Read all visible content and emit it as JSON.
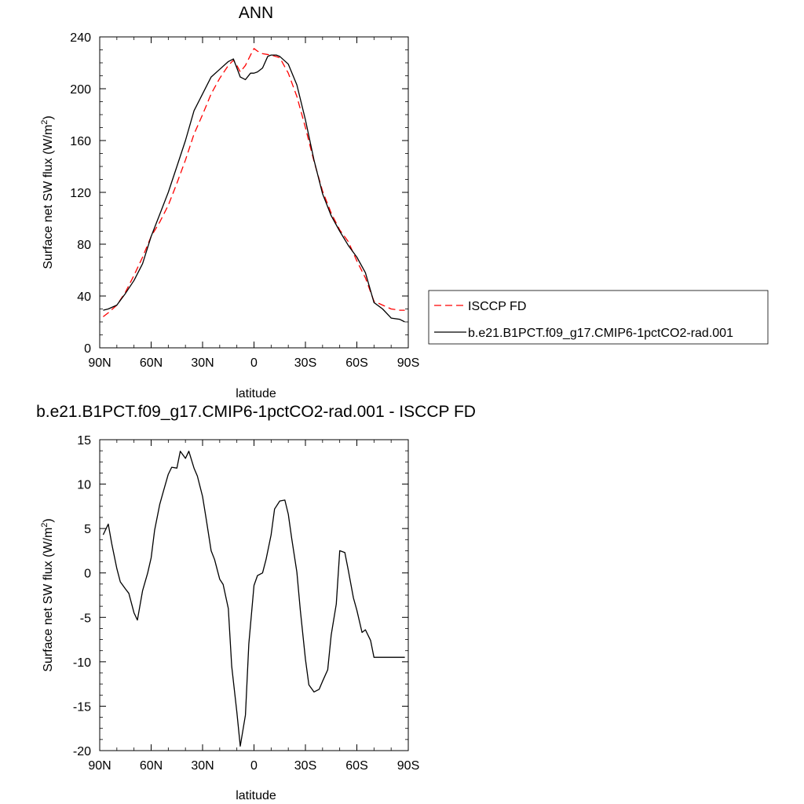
{
  "chart_data": [
    {
      "type": "line",
      "title": "ANN",
      "xlabel": "latitude",
      "ylabel_prefix": "Surface net SW flux (W/m",
      "ylabel_sup": "2",
      "ylabel_suffix": ")",
      "xlim": [
        -90,
        90
      ],
      "ylim": [
        0,
        240
      ],
      "xticks": [
        -90,
        -60,
        -30,
        0,
        30,
        60,
        90
      ],
      "xtick_labels": [
        "90N",
        "60N",
        "30N",
        "0",
        "30S",
        "60S",
        "90S"
      ],
      "yticks": [
        0,
        40,
        80,
        120,
        160,
        200,
        240
      ],
      "ytick_labels": [
        "0",
        "40",
        "80",
        "120",
        "160",
        "200",
        "240"
      ],
      "legend_placement": "right",
      "series": [
        {
          "name": "ISCCP FD",
          "color": "#ff0000",
          "dash": true,
          "x": [
            -88,
            -85,
            -80,
            -75,
            -70,
            -65,
            -60,
            -55,
            -50,
            -45,
            -40,
            -35,
            -30,
            -25,
            -20,
            -15,
            -12,
            -10,
            -8,
            -5,
            -2,
            0,
            2,
            5,
            10,
            15,
            20,
            25,
            30,
            35,
            40,
            45,
            50,
            55,
            60,
            65,
            70,
            75,
            80,
            85,
            88
          ],
          "y": [
            24,
            27,
            33,
            43,
            56,
            70,
            86,
            97,
            110,
            127,
            145,
            165,
            180,
            196,
            208,
            218,
            222,
            218,
            213,
            218,
            226,
            231,
            229,
            227,
            226,
            224,
            212,
            194,
            170,
            144,
            121,
            104,
            91,
            82,
            67,
            54,
            36,
            33,
            30,
            29,
            29
          ]
        },
        {
          "name": "b.e21.B1PCT.f09_g17.CMIP6-1pctCO2-rad.001",
          "color": "#000000",
          "dash": false,
          "x": [
            -88,
            -85,
            -80,
            -75,
            -70,
            -65,
            -60,
            -55,
            -50,
            -45,
            -40,
            -35,
            -30,
            -25,
            -20,
            -15,
            -12,
            -10,
            -8,
            -5,
            -2,
            0,
            2,
            5,
            8,
            10,
            13,
            15,
            20,
            25,
            30,
            35,
            40,
            45,
            50,
            55,
            60,
            65,
            70,
            75,
            80,
            85,
            88
          ],
          "y": [
            29,
            30,
            33,
            42,
            52,
            65,
            86,
            103,
            120,
            140,
            160,
            183,
            196,
            209,
            215,
            221,
            223,
            216,
            209,
            207,
            212,
            212,
            213,
            216,
            225,
            226,
            226,
            225,
            219,
            203,
            176,
            145,
            119,
            102,
            90,
            79,
            70,
            58,
            35,
            30,
            23,
            22,
            20
          ]
        }
      ]
    },
    {
      "type": "line",
      "title": "b.e21.B1PCT.f09_g17.CMIP6-1pctCO2-rad.001 - ISCCP FD",
      "xlabel": "latitude",
      "ylabel_prefix": "Surface net SW flux (W/m",
      "ylabel_sup": "2",
      "ylabel_suffix": ")",
      "xlim": [
        -90,
        90
      ],
      "ylim": [
        -20,
        15
      ],
      "xticks": [
        -90,
        -60,
        -30,
        0,
        30,
        60,
        90
      ],
      "xtick_labels": [
        "90N",
        "60N",
        "30N",
        "0",
        "30S",
        "60S",
        "90S"
      ],
      "yticks": [
        -20,
        -15,
        -10,
        -5,
        0,
        5,
        10,
        15
      ],
      "ytick_labels": [
        "-20",
        "-15",
        "-10",
        "-5",
        "0",
        "5",
        "10",
        "15"
      ],
      "series": [
        {
          "color": "#000000",
          "dash": false,
          "x": [
            -88,
            -85,
            -83,
            -80,
            -78,
            -75,
            -73,
            -70,
            -68,
            -65,
            -62,
            -60,
            -58,
            -55,
            -53,
            -50,
            -48,
            -45,
            -43,
            -40,
            -38,
            -35,
            -33,
            -30,
            -28,
            -25,
            -23,
            -20,
            -18,
            -15,
            -13,
            -10,
            -8,
            -5,
            -3,
            0,
            2,
            5,
            7,
            10,
            12,
            15,
            18,
            20,
            22,
            25,
            27,
            30,
            32,
            35,
            38,
            40,
            43,
            45,
            48,
            50,
            53,
            55,
            58,
            60,
            63,
            65,
            68,
            70,
            73,
            75,
            78,
            80,
            83,
            85,
            88
          ],
          "y": [
            4.3,
            5.5,
            3.3,
            0.5,
            -1.0,
            -1.8,
            -2.3,
            -4.5,
            -5.3,
            -2.0,
            0.0,
            1.7,
            4.8,
            7.7,
            9.1,
            11.1,
            11.9,
            11.8,
            13.7,
            12.9,
            13.7,
            11.8,
            10.9,
            8.6,
            6.2,
            2.5,
            1.5,
            -0.7,
            -1.3,
            -4.0,
            -10.5,
            -15.7,
            -19.5,
            -16.0,
            -8.0,
            -1.4,
            -0.3,
            0.0,
            1.5,
            4.3,
            7.2,
            8.1,
            8.2,
            6.6,
            3.9,
            0.1,
            -4.2,
            -9.7,
            -12.6,
            -13.4,
            -13.1,
            -12.2,
            -10.9,
            -7.0,
            -3.5,
            2.5,
            2.3,
            0.3,
            -2.8,
            -4.2,
            -6.7,
            -6.4,
            -7.6,
            -9.5,
            -9.5,
            -9.5,
            -9.5,
            -9.5,
            -9.5,
            -9.5,
            -9.5
          ]
        }
      ]
    }
  ]
}
